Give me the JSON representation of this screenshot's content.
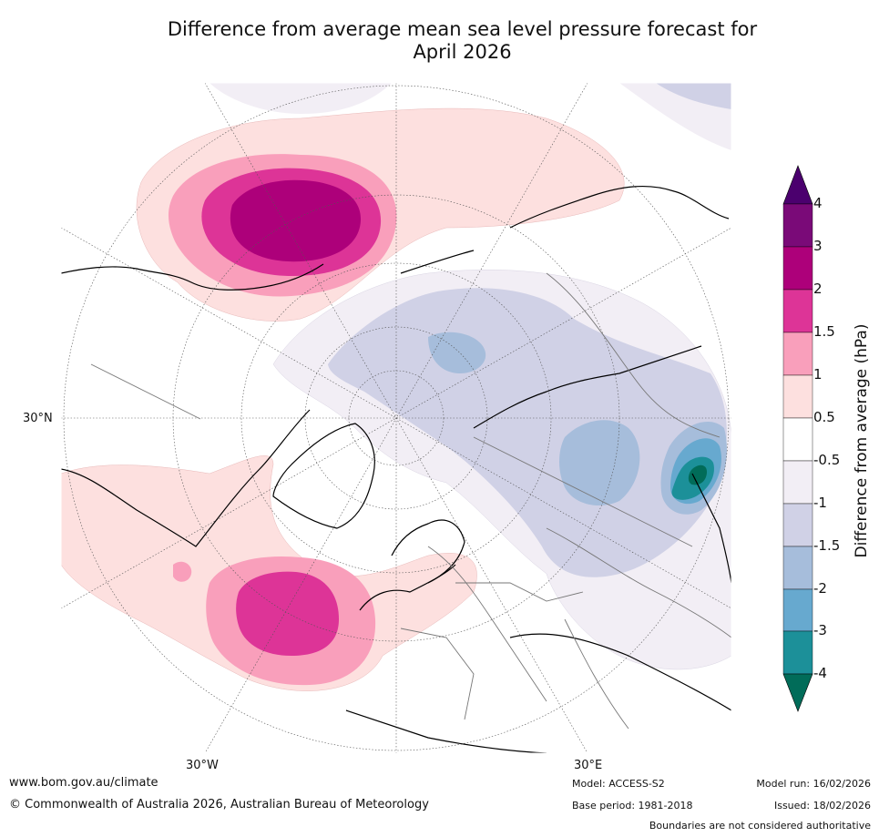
{
  "title_line1": "Difference from average mean sea level pressure forecast for",
  "title_line2": "April 2026",
  "map": {
    "projection": "polar stereographic (north)",
    "lat_labels": [
      "30°N",
      "30°W",
      "30°E"
    ]
  },
  "colorbar": {
    "title": "Difference from average (hPa)",
    "ticks": [
      "4",
      "3",
      "2",
      "1.5",
      "1",
      "0.5",
      "-0.5",
      "-1",
      "-1.5",
      "-2",
      "-3",
      "-4"
    ],
    "colors": {
      "over": "#4b006e",
      "b3_4": "#7a0a78",
      "b2_3": "#ad007a",
      "b15_2": "#dd3497",
      "b1_15": "#f99fbb",
      "b05_1": "#fde0df",
      "neutral": "#ffffff",
      "bn1_n05": "#f2eef5",
      "bn15_n1": "#d0d1e6",
      "bn2_n15": "#a6bddb",
      "bn3_n2": "#67a9cf",
      "bn4_n3": "#1c9099",
      "under": "#016c59"
    }
  },
  "footer": {
    "website": "www.bom.gov.au/climate",
    "copyright": "© Commonwealth of Australia 2026, Australian Bureau of Meteorology",
    "model": "Model: ACCESS-S2",
    "base_period": "Base period: 1981-2018",
    "model_run": "Model run: 16/02/2026",
    "issued": "Issued: 18/02/2026",
    "disclaimer": "Boundaries are not considered authoritative"
  }
}
